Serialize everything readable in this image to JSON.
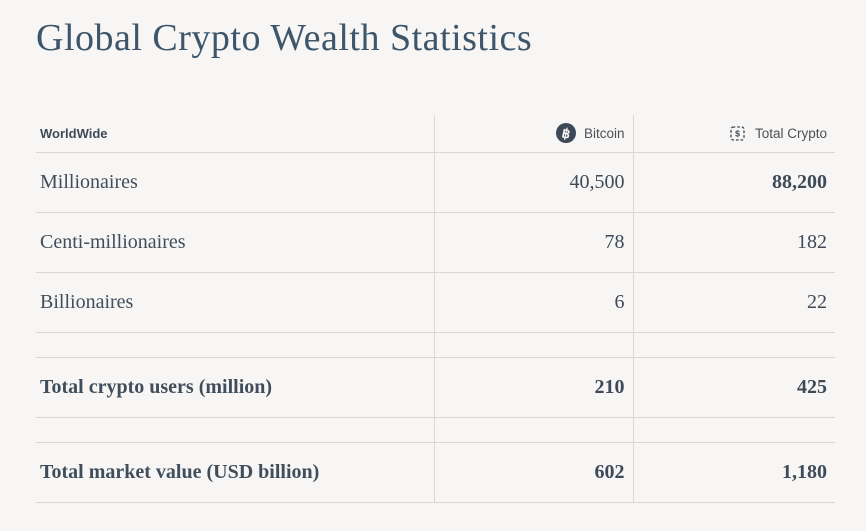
{
  "title": "Global Crypto Wealth Statistics",
  "colors": {
    "background": "#f7f6f4",
    "title": "#3d566b",
    "icon_dark": "#3d4956",
    "border": "#d7d6d4",
    "text": "#3e4a58"
  },
  "icons": {
    "bitcoin_symbol": "฿",
    "chip_dollar_symbol": "$"
  },
  "table": {
    "header": {
      "worldwide": "WorldWide",
      "bitcoin": "Bitcoin",
      "total_crypto": "Total Crypto"
    },
    "rows": [
      {
        "label": "Millionaires",
        "bitcoin": "40,500",
        "total_crypto": "88,200",
        "bold": {
          "label": false,
          "bitcoin": false,
          "total_crypto": true
        }
      },
      {
        "label": "Centi-millionaires",
        "bitcoin": "78",
        "total_crypto": "182",
        "bold": {
          "label": false,
          "bitcoin": false,
          "total_crypto": false
        }
      },
      {
        "label": "Billionaires",
        "bitcoin": "6",
        "total_crypto": "22",
        "bold": {
          "label": false,
          "bitcoin": false,
          "total_crypto": false
        }
      },
      {
        "spacer": true
      },
      {
        "label": "Total crypto users (million)",
        "bitcoin": "210",
        "total_crypto": "425",
        "bold": {
          "label": true,
          "bitcoin": true,
          "total_crypto": true
        }
      },
      {
        "spacer": true
      },
      {
        "label": "Total market value (USD billion)",
        "bitcoin": "602",
        "total_crypto": "1,180",
        "bold": {
          "label": true,
          "bitcoin": true,
          "total_crypto": true
        }
      }
    ]
  }
}
